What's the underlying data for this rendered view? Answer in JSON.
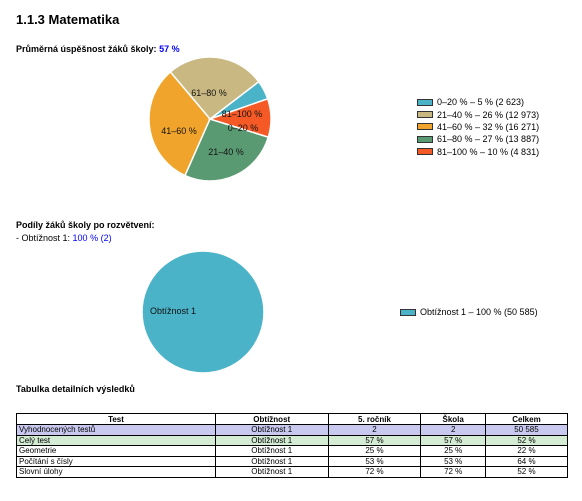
{
  "section_title": "1.1.3 Matematika",
  "success": {
    "label": "Průměrná úspěšnost žáků školy:",
    "value": "57 %"
  },
  "pie1": {
    "legend": [
      {
        "label": "0–20 % – 5 % (2 623)",
        "color": "#4bb3c8"
      },
      {
        "label": "21–40 % – 26 % (12 973)",
        "color": "#c9b882"
      },
      {
        "label": "41–60 % – 32 % (16 271)",
        "color": "#f0a42b"
      },
      {
        "label": "61–80 % – 27 % (13 887)",
        "color": "#5a9a72"
      },
      {
        "label": "81–100 % – 10 % (4 831)",
        "color": "#f55a26"
      }
    ]
  },
  "branch": {
    "title": "Podíly žáků školy po rozvětvení:",
    "prefix": "- Obtížnost 1:",
    "value": "100 % (2)"
  },
  "pie2": {
    "legend": [
      {
        "label": "Obtížnost 1 – 100 % (50 585)",
        "color": "#4bb3c8"
      }
    ]
  },
  "chart_data": [
    {
      "type": "pie",
      "categories": [
        "0–20 %",
        "21–40 %",
        "41–60 %",
        "61–80 %",
        "81–100 %"
      ],
      "values": [
        5,
        26,
        32,
        27,
        10
      ],
      "counts": [
        2623,
        12973,
        16271,
        13887,
        4831
      ],
      "colors": [
        "#4bb3c8",
        "#c9b882",
        "#f0a42b",
        "#5a9a72",
        "#f55a26"
      ],
      "legend_position": "right"
    },
    {
      "type": "pie",
      "categories": [
        "Obtížnost 1"
      ],
      "values": [
        100
      ],
      "counts": [
        50585
      ],
      "colors": [
        "#4bb3c8"
      ],
      "legend_position": "right"
    }
  ],
  "table": {
    "title": "Tabulka detailních výsledků",
    "headers": [
      "Test",
      "Obtížnost",
      "5. ročník",
      "Škola",
      "Celkem"
    ],
    "rows": [
      [
        "Vyhodnocených testů",
        "Obtížnost 1",
        "2",
        "2",
        "50 585"
      ],
      [
        "Celý test",
        "Obtížnost 1",
        "57 %",
        "57 %",
        "52 %"
      ],
      [
        "Geometrie",
        "Obtížnost 1",
        "25 %",
        "25 %",
        "22 %"
      ],
      [
        "Počítání s čísly",
        "Obtížnost 1",
        "53 %",
        "53 %",
        "64 %"
      ],
      [
        "Slovní úlohy",
        "Obtížnost 1",
        "72 %",
        "72 %",
        "52 %"
      ]
    ]
  }
}
